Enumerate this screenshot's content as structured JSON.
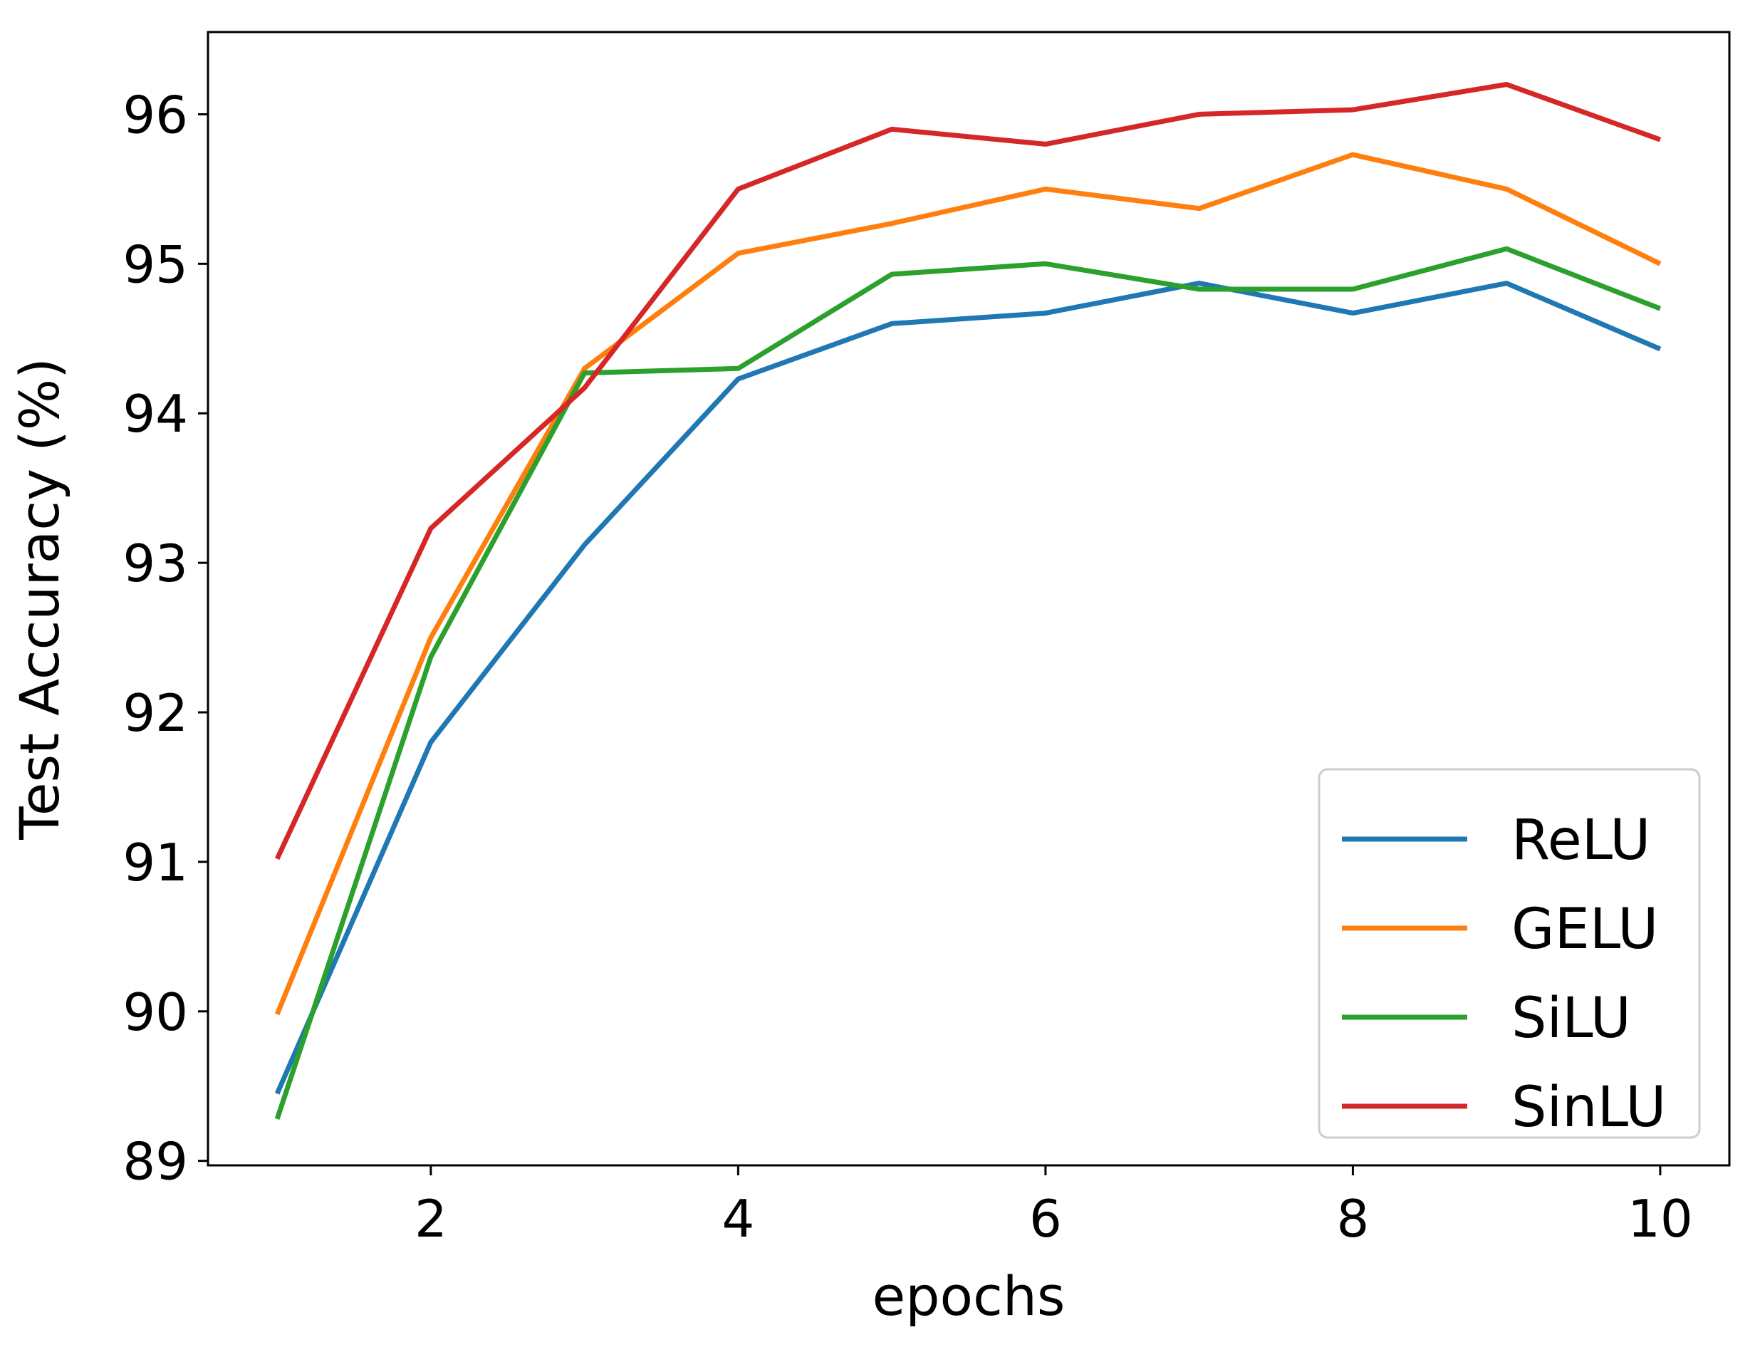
{
  "chart_data": {
    "type": "line",
    "title": "",
    "xlabel": "epochs",
    "ylabel": "Test Accuracy (%)",
    "x": [
      1,
      2,
      3,
      4,
      5,
      6,
      7,
      8,
      9,
      10
    ],
    "xlim": [
      0.55,
      10.45
    ],
    "ylim": [
      88.97,
      96.55
    ],
    "xticks": [
      2,
      4,
      6,
      8,
      10
    ],
    "yticks": [
      89,
      90,
      91,
      92,
      93,
      94,
      95,
      96
    ],
    "grid": false,
    "legend_position": "lower-right",
    "series": [
      {
        "name": "ReLU",
        "color": "#1f77b4",
        "values": [
          89.45,
          91.8,
          93.12,
          94.23,
          94.6,
          94.67,
          94.87,
          94.67,
          94.87,
          94.43
        ]
      },
      {
        "name": "GELU",
        "color": "#ff7f0e",
        "values": [
          89.98,
          92.5,
          94.3,
          95.07,
          95.27,
          95.5,
          95.37,
          95.73,
          95.5,
          95.0
        ]
      },
      {
        "name": "SiLU",
        "color": "#2ca02c",
        "values": [
          89.28,
          92.37,
          94.27,
          94.3,
          94.93,
          95.0,
          94.83,
          94.83,
          95.1,
          94.7
        ]
      },
      {
        "name": "SinLU",
        "color": "#d62728",
        "values": [
          91.02,
          93.23,
          94.17,
          95.5,
          95.9,
          95.8,
          96.0,
          96.03,
          96.2,
          95.83
        ]
      }
    ]
  }
}
